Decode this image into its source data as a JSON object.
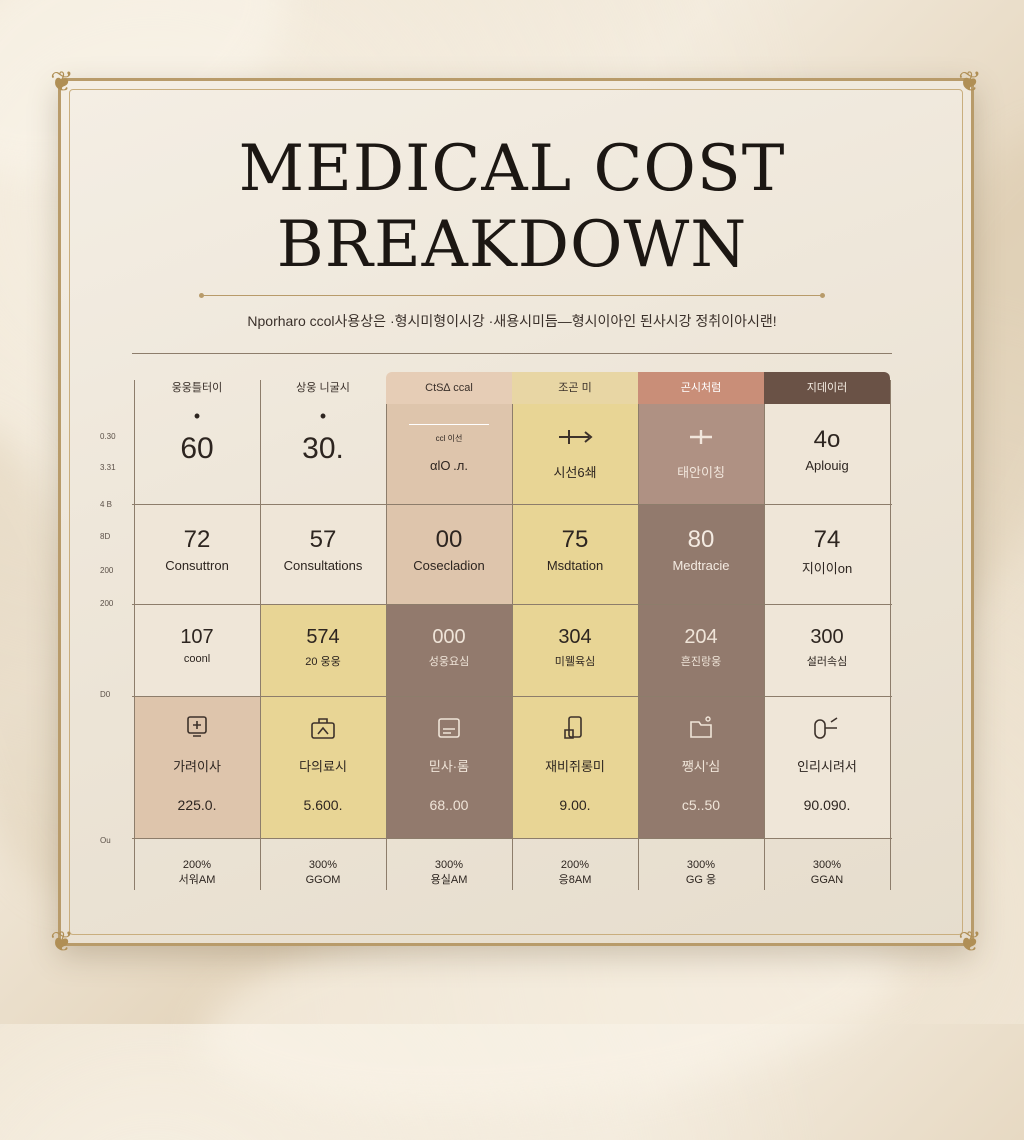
{
  "title": {
    "line1": "MEDICAL COST",
    "line2": "BREAKDOWN"
  },
  "subtitle": "Nporharo ccol사용상은 ·형시미형이시강 ·새용시미듬―형시이아인 된사시강 정취이아시랜!",
  "axis_ticks": [
    "0.30",
    "3.31",
    "4 B",
    "8D",
    "200",
    "200",
    "D0",
    "Ou"
  ],
  "columns": [
    {
      "header": "웅웅틀터이",
      "header_color": ""
    },
    {
      "header": "상웅 니굴시",
      "header_color": ""
    },
    {
      "header": "CtS∆ ccal",
      "header_color": "#e6cdb6"
    },
    {
      "header": "조곤 미",
      "header_color": "#e8d6a4"
    },
    {
      "header": "곤시처럼",
      "header_color": "#c98e78"
    },
    {
      "header": "지데이러",
      "header_color": "#6a5246"
    }
  ],
  "row1": [
    {
      "value": "60",
      "dot": "•",
      "label": ""
    },
    {
      "value": "30.",
      "dot": "•",
      "label": ""
    },
    {
      "value": "",
      "dot": "",
      "small": "ccl 이선",
      "label": "αlO .л."
    },
    {
      "value": "",
      "icon": "syringe-icon",
      "label": "시선6쇄"
    },
    {
      "value": "",
      "icon": "cross-icon",
      "label": "태안이칭"
    },
    {
      "value": "4o",
      "label": "Aplouig"
    }
  ],
  "row2": [
    {
      "value": "72",
      "label": "Consuttron"
    },
    {
      "value": "57",
      "label": "Consultations"
    },
    {
      "value": "00",
      "label": "Cosecladion"
    },
    {
      "value": "75",
      "label": "Msdtation"
    },
    {
      "value": "80",
      "label": "Medtracie"
    },
    {
      "value": "74",
      "label": "지이이on"
    }
  ],
  "row3": [
    {
      "value": "107",
      "label": "coonl"
    },
    {
      "value": "574",
      "label": "20 웅웅"
    },
    {
      "value": "000",
      "label": "성웅요심"
    },
    {
      "value": "304",
      "label": "미웰육심"
    },
    {
      "value": "204",
      "label": "흔진랑웅"
    },
    {
      "value": "300",
      "label": "설러속심"
    }
  ],
  "row4": [
    {
      "icon": "doctor-icon",
      "label": "가려이사",
      "value": "225.0."
    },
    {
      "icon": "medkit-icon",
      "label": "다의료시",
      "value": "5.600."
    },
    {
      "icon": "clipboard-icon",
      "label": "믿사·롬",
      "value": "68..00"
    },
    {
      "icon": "pharmacy-icon",
      "label": "재비쥐롱미",
      "value": "9.00."
    },
    {
      "icon": "folder-icon",
      "label": "쨍시'심",
      "value": "c5..50"
    },
    {
      "icon": "pill-icon",
      "label": "인리시려서",
      "value": "90.090."
    }
  ],
  "footer": [
    {
      "line1": "200%",
      "line2": "서워AM"
    },
    {
      "line1": "300%",
      "line2": "GGOM"
    },
    {
      "line1": "300%",
      "line2": "용실AM"
    },
    {
      "line1": "200%",
      "line2": "응8AM"
    },
    {
      "line1": "300%",
      "line2": "GG 웅"
    },
    {
      "line1": "300%",
      "line2": "GGAN"
    }
  ],
  "colors": {
    "cream": "#efe6d8",
    "sand": "#dcc2a8",
    "gold": "#e7d48f",
    "brown": "#8a7164",
    "taupe": "#a98a7c",
    "frame": "#b89b6a"
  }
}
